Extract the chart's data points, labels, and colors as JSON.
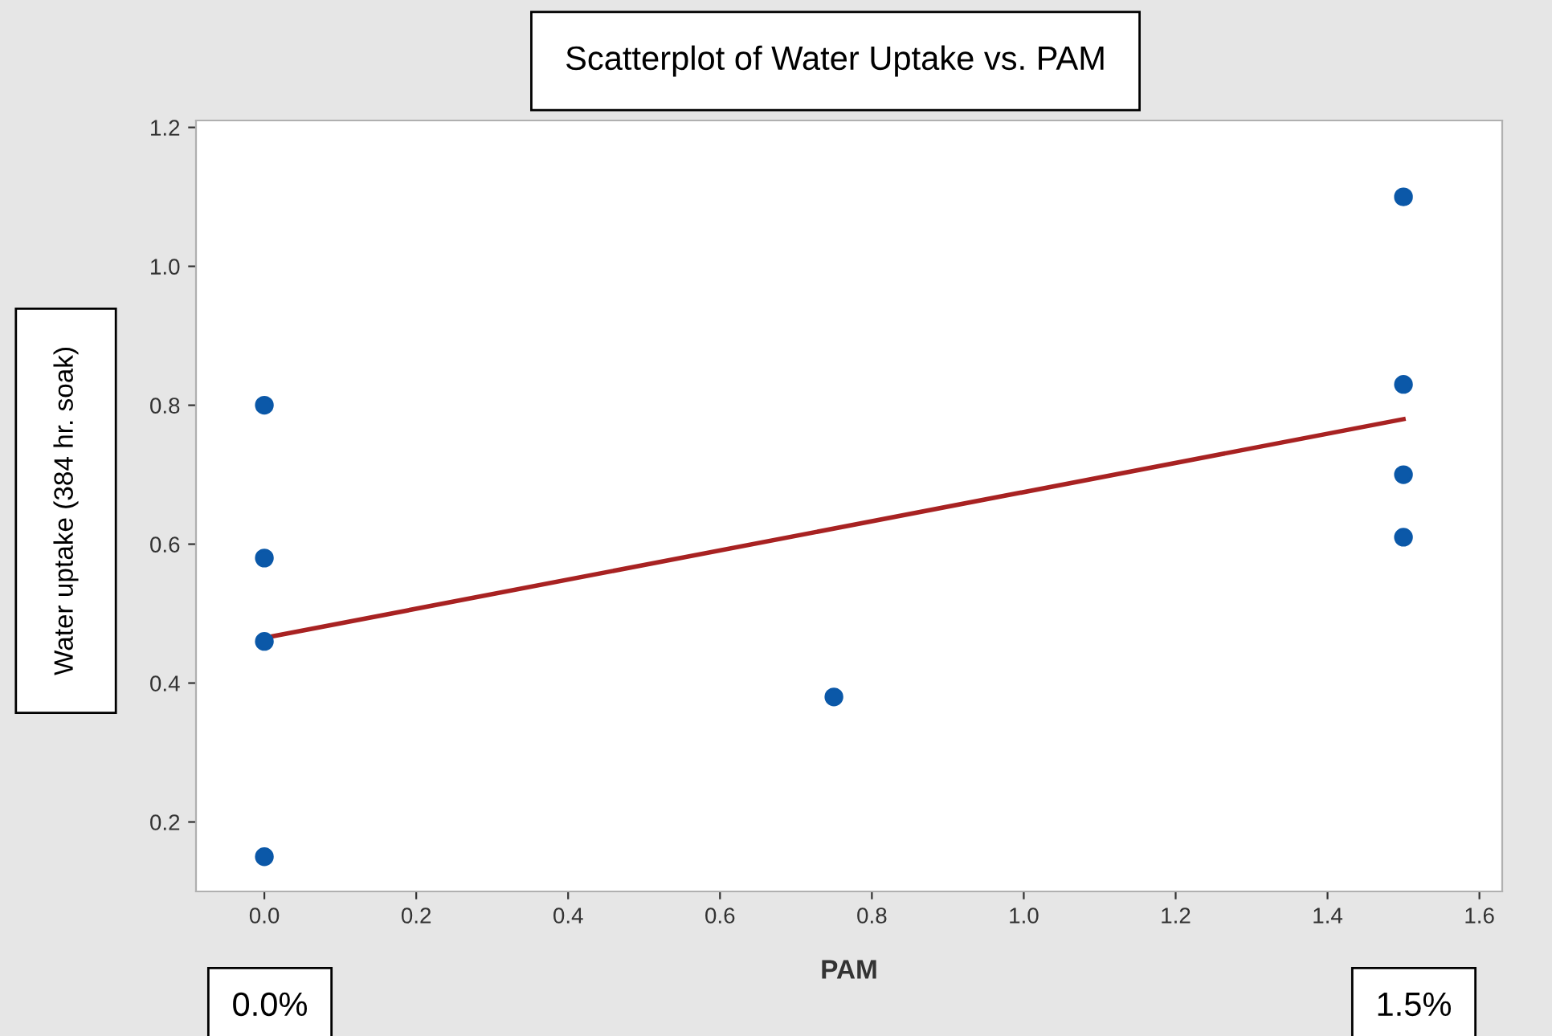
{
  "chart_data": {
    "type": "scatter",
    "title": "Scatterplot of Water Uptake vs. PAM",
    "xlabel": "PAM",
    "ylabel": "Water uptake (384 hr. soak)",
    "series": [
      {
        "color": "#0b58a8",
        "marker": "circle",
        "x": [
          0,
          0,
          0,
          0,
          0.75,
          1.5,
          1.5,
          1.5,
          1.5
        ],
        "values": [
          0.8,
          0.58,
          0.46,
          0.15,
          0.38,
          1.1,
          0.83,
          0.7,
          0.61
        ]
      },
      {
        "type": "line",
        "marker": "none",
        "color": "#a82222",
        "x": [
          0,
          1.5
        ],
        "values": [
          0.465,
          0.78
        ]
      }
    ],
    "xlim": [
      -0.09,
      1.63
    ],
    "ylim": [
      0.1,
      1.21
    ],
    "xticks": [
      {
        "value": 0,
        "label": "0.0"
      },
      0.2,
      0.4,
      0.6,
      0.8,
      {
        "value": 1,
        "label": "1.0"
      },
      1.2,
      1.4,
      1.6
    ],
    "yticks": [
      0.2,
      0.4,
      0.6,
      0.8,
      {
        "value": 1,
        "label": "1.0"
      },
      1.2
    ],
    "grid": false,
    "line_style": "solid",
    "annotations": [
      "0.0%",
      "1.5%"
    ]
  }
}
